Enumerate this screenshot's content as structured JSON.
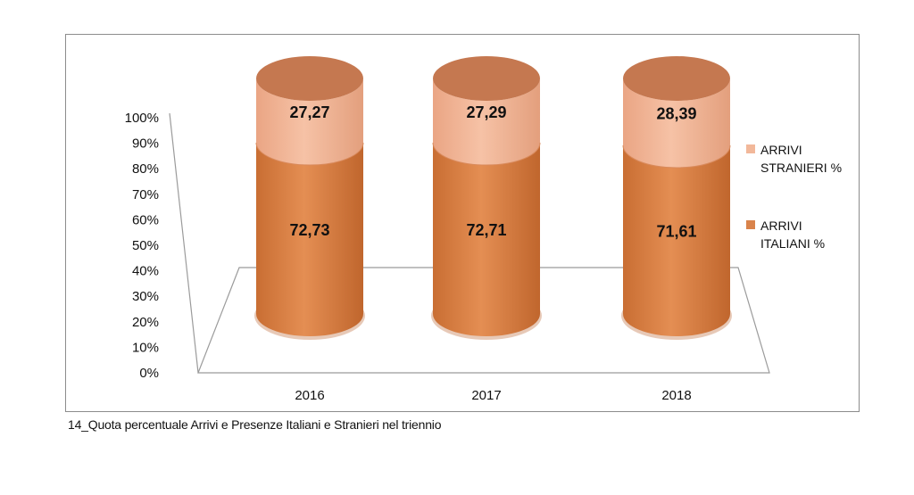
{
  "chart_data": {
    "type": "bar",
    "stacked": true,
    "percent_stacked": true,
    "style": "3d-cylinder",
    "categories": [
      "2016",
      "2017",
      "2018"
    ],
    "series": [
      {
        "name": "ARRIVI ITALIANI %",
        "values": [
          72.73,
          72.71,
          71.61
        ],
        "value_labels": [
          "72,73",
          "72,71",
          "71,61"
        ],
        "color": "#d9834b"
      },
      {
        "name": "ARRIVI STRANIERI %",
        "values": [
          27.27,
          27.29,
          28.39
        ],
        "value_labels": [
          "27,27",
          "27,29",
          "28,39"
        ],
        "color": "#f2b89a"
      }
    ],
    "y_ticks": [
      "0%",
      "10%",
      "20%",
      "30%",
      "40%",
      "50%",
      "60%",
      "70%",
      "80%",
      "90%",
      "100%"
    ],
    "ylim": [
      0,
      100
    ],
    "legend": {
      "position": "right",
      "entries": [
        {
          "lines": [
            "ARRIVI",
            "STRANIERI %"
          ],
          "color": "#f2b89a"
        },
        {
          "lines": [
            "ARRIVI",
            "ITALIANI %"
          ],
          "color": "#d9834b"
        }
      ]
    },
    "grid": false
  },
  "caption": "14_Quota percentuale Arrivi e Presenze Italiani e Stranieri nel triennio"
}
